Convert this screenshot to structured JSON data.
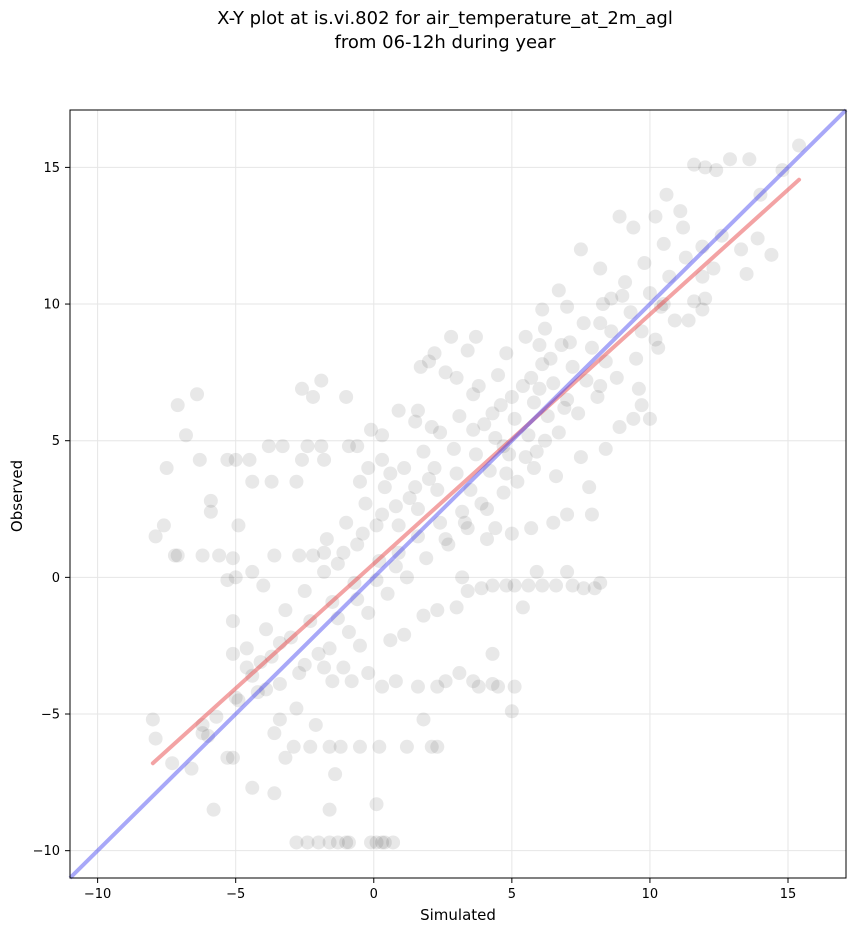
{
  "chart_data": {
    "type": "scatter",
    "title_line1": "X-Y plot at is.vi.802 for air_temperature_at_2m_agl",
    "title_line2": "from 06-12h during year",
    "xlabel": "Simulated",
    "ylabel": "Observed",
    "xlim": [
      -11,
      17.1
    ],
    "ylim": [
      -11,
      17.1
    ],
    "xticks": [
      -10,
      -5,
      0,
      5,
      10,
      15
    ],
    "yticks": [
      -10,
      -5,
      0,
      5,
      10,
      15
    ],
    "xtick_labels": [
      "−10",
      "−5",
      "0",
      "5",
      "10",
      "15"
    ],
    "ytick_labels": [
      "−10",
      "−5",
      "0",
      "5",
      "10",
      "15"
    ],
    "grid": true,
    "colors": {
      "points": "#000000",
      "fit_line": "#e8474a",
      "identity_line": "#3d3df0"
    },
    "identity_line": {
      "name": "1:1",
      "x": [
        -11,
        17.1
      ],
      "y": [
        -11,
        17.1
      ]
    },
    "fit_line": {
      "x": [
        -8.0,
        15.4
      ],
      "y": [
        -6.8,
        14.55
      ]
    },
    "points": [
      [
        -8.0,
        -5.2
      ],
      [
        -7.9,
        -5.9
      ],
      [
        -7.3,
        -6.8
      ],
      [
        -6.6,
        -7.0
      ],
      [
        -6.2,
        -5.4
      ],
      [
        -5.8,
        -8.5
      ],
      [
        -5.3,
        -6.6
      ],
      [
        -6.0,
        -5.8
      ],
      [
        -7.1,
        6.3
      ],
      [
        -6.4,
        6.7
      ],
      [
        -6.8,
        5.2
      ],
      [
        -7.5,
        4.0
      ],
      [
        -7.9,
        1.5
      ],
      [
        -7.6,
        1.9
      ],
      [
        -7.1,
        0.8
      ],
      [
        -7.2,
        0.8
      ],
      [
        -5.9,
        2.8
      ],
      [
        -5.9,
        2.4
      ],
      [
        -6.3,
        4.3
      ],
      [
        -5.0,
        4.3
      ],
      [
        -5.3,
        4.3
      ],
      [
        -4.5,
        4.3
      ],
      [
        -5.1,
        0.7
      ],
      [
        -4.9,
        1.9
      ],
      [
        -5.6,
        0.8
      ],
      [
        -6.2,
        0.8
      ],
      [
        -5.3,
        -0.1
      ],
      [
        -5.0,
        0.0
      ],
      [
        -4.4,
        3.5
      ],
      [
        -3.7,
        3.5
      ],
      [
        -3.8,
        4.8
      ],
      [
        -3.3,
        4.8
      ],
      [
        -2.8,
        3.5
      ],
      [
        -2.6,
        4.3
      ],
      [
        -1.8,
        4.3
      ],
      [
        -2.4,
        4.8
      ],
      [
        -1.9,
        4.8
      ],
      [
        -2.6,
        6.9
      ],
      [
        -2.2,
        6.6
      ],
      [
        -1.9,
        7.2
      ],
      [
        -1.0,
        6.6
      ],
      [
        -0.9,
        4.8
      ],
      [
        -0.6,
        4.8
      ],
      [
        -0.1,
        5.4
      ],
      [
        -0.2,
        4.0
      ],
      [
        0.3,
        4.3
      ],
      [
        0.6,
        3.8
      ],
      [
        -0.5,
        3.5
      ],
      [
        -3.6,
        0.8
      ],
      [
        -2.7,
        0.8
      ],
      [
        -2.2,
        0.8
      ],
      [
        -1.8,
        0.9
      ],
      [
        -4.4,
        0.2
      ],
      [
        -4.0,
        -0.3
      ],
      [
        -5.1,
        -1.6
      ],
      [
        -5.1,
        -2.8
      ],
      [
        -4.6,
        -3.3
      ],
      [
        -4.9,
        -4.5
      ],
      [
        -5.1,
        -6.6
      ],
      [
        -4.4,
        -7.7
      ],
      [
        -3.6,
        -7.9
      ],
      [
        -3.2,
        -6.6
      ],
      [
        -2.9,
        -6.2
      ],
      [
        -2.3,
        -6.2
      ],
      [
        -1.6,
        -6.2
      ],
      [
        -1.2,
        -6.2
      ],
      [
        -1.4,
        -7.2
      ],
      [
        -1.6,
        -8.5
      ],
      [
        -0.5,
        -6.2
      ],
      [
        0.2,
        -6.2
      ],
      [
        1.2,
        -6.2
      ],
      [
        2.1,
        -6.2
      ],
      [
        2.3,
        -6.2
      ],
      [
        1.8,
        -5.2
      ],
      [
        -2.4,
        -9.7
      ],
      [
        -2.0,
        -9.7
      ],
      [
        -1.6,
        -9.7
      ],
      [
        -1.3,
        -9.7
      ],
      [
        -1.0,
        -9.7
      ],
      [
        -0.9,
        -9.7
      ],
      [
        -0.1,
        -9.7
      ],
      [
        0.1,
        -9.7
      ],
      [
        0.3,
        -9.7
      ],
      [
        0.4,
        -9.7
      ],
      [
        0.1,
        -8.3
      ],
      [
        0.7,
        -9.7
      ],
      [
        -2.8,
        -9.7
      ],
      [
        -1.5,
        -3.8
      ],
      [
        -0.8,
        -3.8
      ],
      [
        -0.2,
        -3.5
      ],
      [
        0.3,
        -4.0
      ],
      [
        0.8,
        -3.8
      ],
      [
        1.6,
        -4.0
      ],
      [
        2.6,
        -3.8
      ],
      [
        3.1,
        -3.5
      ],
      [
        3.6,
        -3.8
      ],
      [
        4.3,
        -3.9
      ],
      [
        4.5,
        -4.0
      ],
      [
        5.1,
        -4.0
      ],
      [
        5.0,
        -4.9
      ],
      [
        4.3,
        -2.8
      ],
      [
        3.8,
        -4.0
      ],
      [
        2.3,
        -4.0
      ],
      [
        3.2,
        0.0
      ],
      [
        3.4,
        -0.5
      ],
      [
        3.9,
        -0.4
      ],
      [
        4.3,
        -0.3
      ],
      [
        4.8,
        -0.3
      ],
      [
        5.1,
        -0.3
      ],
      [
        5.6,
        -0.3
      ],
      [
        5.4,
        -1.1
      ],
      [
        6.1,
        -0.3
      ],
      [
        6.6,
        -0.3
      ],
      [
        7.0,
        0.2
      ],
      [
        7.6,
        -0.4
      ],
      [
        8.0,
        -0.4
      ],
      [
        8.2,
        -0.2
      ],
      [
        7.2,
        -0.3
      ],
      [
        3.0,
        -1.1
      ],
      [
        2.3,
        -1.2
      ],
      [
        1.8,
        -1.4
      ],
      [
        1.1,
        -2.1
      ],
      [
        0.6,
        -2.3
      ],
      [
        -0.5,
        -2.5
      ],
      [
        -1.1,
        -3.3
      ],
      [
        -1.8,
        -3.3
      ],
      [
        -2.5,
        -3.2
      ],
      [
        -3.4,
        -3.9
      ],
      [
        -3.9,
        -4.1
      ],
      [
        -4.2,
        -4.2
      ],
      [
        -2.8,
        -4.8
      ],
      [
        -2.1,
        -5.4
      ],
      [
        -3.4,
        -5.2
      ],
      [
        -3.6,
        -5.7
      ],
      [
        8.9,
        13.2
      ],
      [
        9.4,
        12.8
      ],
      [
        10.2,
        13.2
      ],
      [
        10.6,
        14.0
      ],
      [
        11.1,
        13.4
      ],
      [
        11.6,
        15.1
      ],
      [
        12.0,
        15.0
      ],
      [
        12.9,
        15.3
      ],
      [
        13.6,
        15.3
      ],
      [
        14.0,
        14.0
      ],
      [
        14.4,
        11.8
      ],
      [
        13.9,
        12.4
      ],
      [
        13.3,
        12.0
      ],
      [
        12.6,
        12.5
      ],
      [
        11.9,
        11.0
      ],
      [
        12.0,
        10.2
      ],
      [
        11.9,
        9.8
      ],
      [
        11.4,
        9.4
      ],
      [
        10.5,
        10.0
      ],
      [
        10.3,
        8.4
      ],
      [
        13.5,
        11.1
      ],
      [
        15.4,
        15.8
      ],
      [
        14.8,
        14.9
      ],
      [
        12.4,
        14.9
      ],
      [
        7.5,
        12.0
      ],
      [
        8.2,
        11.3
      ],
      [
        8.6,
        10.2
      ],
      [
        8.2,
        9.3
      ],
      [
        6.7,
        10.5
      ],
      [
        6.1,
        9.8
      ],
      [
        6.0,
        8.5
      ],
      [
        3.7,
        8.8
      ],
      [
        3.4,
        8.3
      ],
      [
        2.8,
        8.8
      ],
      [
        2.2,
        8.2
      ],
      [
        2.0,
        7.9
      ],
      [
        1.7,
        7.7
      ],
      [
        2.6,
        7.5
      ],
      [
        3.0,
        7.3
      ],
      [
        1.6,
        6.1
      ],
      [
        0.9,
        6.1
      ],
      [
        0.3,
        5.2
      ],
      [
        1.5,
        5.7
      ],
      [
        2.1,
        5.5
      ],
      [
        7.8,
        3.3
      ],
      [
        7.9,
        2.3
      ],
      [
        7.0,
        2.3
      ],
      [
        6.5,
        2.0
      ],
      [
        5.7,
        1.8
      ],
      [
        5.0,
        1.6
      ],
      [
        4.4,
        1.8
      ],
      [
        4.1,
        1.4
      ],
      [
        5.9,
        0.2
      ],
      [
        6.6,
        3.7
      ],
      [
        7.5,
        4.4
      ],
      [
        8.4,
        4.7
      ],
      [
        9.4,
        5.8
      ],
      [
        10.0,
        5.8
      ],
      [
        9.7,
        6.3
      ],
      [
        8.9,
        5.5
      ],
      [
        9.6,
        6.9
      ],
      [
        8.2,
        7.0
      ],
      [
        6.9,
        6.2
      ],
      [
        5.8,
        4.0
      ],
      [
        4.7,
        3.1
      ],
      [
        3.9,
        2.7
      ],
      [
        3.2,
        2.4
      ],
      [
        2.4,
        2.0
      ],
      [
        1.6,
        1.5
      ],
      [
        0.9,
        0.9
      ],
      [
        0.2,
        0.6
      ],
      [
        -0.7,
        -0.2
      ],
      [
        -1.5,
        -0.9
      ],
      [
        -2.3,
        -1.6
      ],
      [
        -3.0,
        -2.2
      ],
      [
        -3.7,
        -2.9
      ],
      [
        -4.4,
        -3.6
      ],
      [
        -5.0,
        -4.4
      ],
      [
        -5.7,
        -5.1
      ],
      [
        -6.2,
        -5.7
      ],
      [
        6.5,
        7.1
      ],
      [
        7.2,
        7.7
      ],
      [
        7.9,
        8.4
      ],
      [
        8.6,
        9.0
      ],
      [
        9.3,
        9.7
      ],
      [
        10.0,
        10.4
      ],
      [
        10.7,
        11.0
      ],
      [
        11.3,
        11.7
      ],
      [
        5.8,
        6.4
      ],
      [
        5.1,
        5.8
      ],
      [
        4.4,
        5.1
      ],
      [
        3.7,
        4.5
      ],
      [
        3.0,
        3.8
      ],
      [
        2.3,
        3.2
      ],
      [
        1.6,
        2.5
      ],
      [
        0.9,
        1.9
      ],
      [
        4.0,
        5.6
      ],
      [
        4.6,
        6.3
      ],
      [
        5.4,
        7.0
      ],
      [
        6.1,
        7.8
      ],
      [
        6.8,
        8.5
      ],
      [
        7.6,
        9.3
      ],
      [
        8.3,
        10.0
      ],
      [
        9.1,
        10.8
      ],
      [
        3.5,
        3.2
      ],
      [
        4.2,
        3.9
      ],
      [
        4.9,
        4.5
      ],
      [
        5.6,
        5.2
      ],
      [
        6.3,
        5.9
      ],
      [
        7.0,
        6.5
      ],
      [
        7.7,
        7.2
      ],
      [
        8.4,
        7.9
      ],
      [
        2.2,
        4.0
      ],
      [
        2.9,
        4.7
      ],
      [
        3.6,
        5.4
      ],
      [
        1.5,
        3.3
      ],
      [
        0.8,
        2.6
      ],
      [
        0.1,
        1.9
      ],
      [
        -0.6,
        1.2
      ],
      [
        -1.3,
        0.5
      ],
      [
        1.9,
        0.7
      ],
      [
        2.6,
        1.4
      ],
      [
        3.3,
        2.0
      ],
      [
        1.2,
        0.0
      ],
      [
        0.5,
        -0.6
      ],
      [
        -0.2,
        -1.3
      ],
      [
        -0.9,
        -2.0
      ],
      [
        -1.6,
        -2.6
      ],
      [
        4.8,
        8.2
      ],
      [
        5.5,
        8.8
      ],
      [
        6.2,
        9.1
      ],
      [
        7.0,
        9.9
      ],
      [
        3.8,
        7.0
      ],
      [
        4.5,
        7.4
      ],
      [
        5.2,
        3.5
      ],
      [
        5.9,
        4.6
      ],
      [
        6.7,
        5.3
      ],
      [
        7.4,
        6.0
      ],
      [
        8.1,
        6.6
      ],
      [
        8.8,
        7.3
      ],
      [
        9.5,
        8.0
      ],
      [
        10.2,
        8.7
      ],
      [
        10.9,
        9.4
      ],
      [
        11.6,
        10.1
      ],
      [
        9.8,
        11.5
      ],
      [
        10.5,
        12.2
      ],
      [
        11.2,
        12.8
      ],
      [
        11.9,
        12.1
      ],
      [
        12.3,
        11.3
      ],
      [
        9.0,
        10.3
      ],
      [
        9.7,
        9.0
      ],
      [
        10.4,
        9.9
      ],
      [
        -2.5,
        -0.5
      ],
      [
        -3.2,
        -1.2
      ],
      [
        -3.9,
        -1.9
      ],
      [
        -4.6,
        -2.6
      ],
      [
        -1.8,
        0.2
      ],
      [
        -1.1,
        0.9
      ],
      [
        -0.4,
        1.6
      ],
      [
        0.3,
        2.3
      ],
      [
        -2.0,
        -2.8
      ],
      [
        -2.7,
        -3.5
      ],
      [
        -3.4,
        -2.4
      ],
      [
        -4.1,
        -3.1
      ],
      [
        -1.3,
        -1.5
      ],
      [
        -0.6,
        -0.8
      ],
      [
        0.1,
        -0.1
      ],
      [
        0.8,
        0.4
      ],
      [
        1.3,
        2.9
      ],
      [
        2.0,
        3.6
      ],
      [
        2.7,
        1.2
      ],
      [
        3.4,
        1.8
      ],
      [
        4.1,
        2.5
      ],
      [
        4.8,
        3.8
      ],
      [
        5.5,
        4.4
      ],
      [
        6.2,
        5.0
      ],
      [
        3.1,
        5.9
      ],
      [
        2.4,
        5.3
      ],
      [
        1.8,
        4.6
      ],
      [
        1.1,
        4.0
      ],
      [
        0.4,
        3.3
      ],
      [
        -0.3,
        2.7
      ],
      [
        -1.0,
        2.0
      ],
      [
        -1.7,
        1.4
      ],
      [
        5.0,
        6.6
      ],
      [
        5.7,
        7.3
      ],
      [
        6.4,
        8.0
      ],
      [
        7.1,
        8.6
      ],
      [
        4.3,
        6.0
      ],
      [
        3.6,
        6.7
      ],
      [
        4.7,
        4.8
      ],
      [
        6.0,
        6.9
      ]
    ]
  }
}
